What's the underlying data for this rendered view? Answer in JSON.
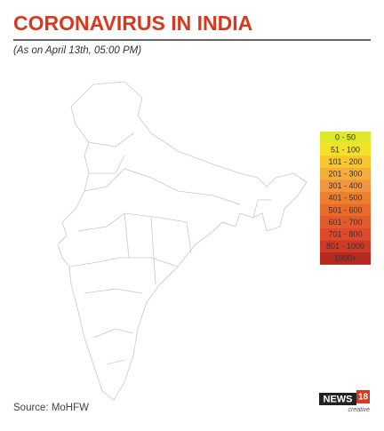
{
  "header": {
    "title": "CORONAVIRUS IN INDIA",
    "subtitle": "(As on April 13th, 05:00 PM)"
  },
  "legend": {
    "items": [
      {
        "label": "0 - 50",
        "color": "#dde92a"
      },
      {
        "label": "51 - 100",
        "color": "#f3e12a"
      },
      {
        "label": "101 - 200",
        "color": "#f7c62a"
      },
      {
        "label": "201 - 300",
        "color": "#f5ad3a"
      },
      {
        "label": "301 - 400",
        "color": "#f29540"
      },
      {
        "label": "401 - 500",
        "color": "#ee7f2c"
      },
      {
        "label": "501 - 600",
        "color": "#ea6a2a"
      },
      {
        "label": "601 - 700",
        "color": "#e55a2c"
      },
      {
        "label": "701 - 800",
        "color": "#df4a2d"
      },
      {
        "label": "801 - 1000",
        "color": "#cf3a27"
      },
      {
        "label": "1000+",
        "color": "#b52a1e"
      }
    ]
  },
  "footer": {
    "source": "Source: MoHFW",
    "logo": {
      "brand": "NEWS",
      "number": "18",
      "tag": "creative"
    }
  }
}
